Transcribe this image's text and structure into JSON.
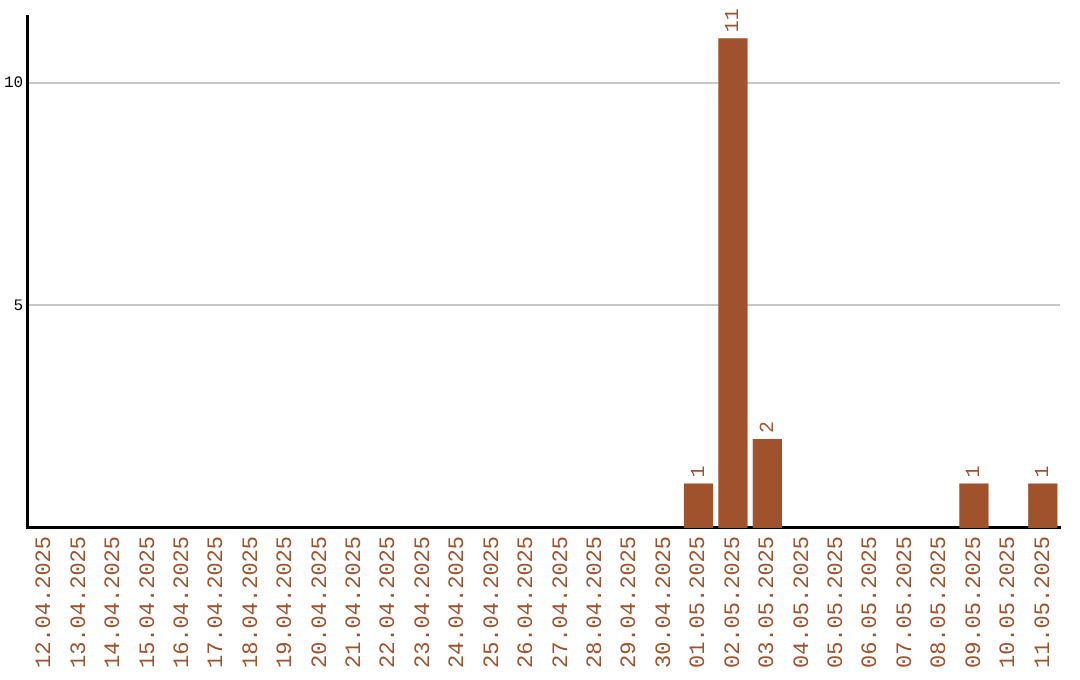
{
  "chart_data": {
    "type": "bar",
    "categories": [
      "12.04.2025",
      "13.04.2025",
      "14.04.2025",
      "15.04.2025",
      "16.04.2025",
      "17.04.2025",
      "18.04.2025",
      "19.04.2025",
      "20.04.2025",
      "21.04.2025",
      "22.04.2025",
      "23.04.2025",
      "24.04.2025",
      "25.04.2025",
      "26.04.2025",
      "27.04.2025",
      "28.04.2025",
      "29.04.2025",
      "30.04.2025",
      "01.05.2025",
      "02.05.2025",
      "03.05.2025",
      "04.05.2025",
      "05.05.2025",
      "06.05.2025",
      "07.05.2025",
      "08.05.2025",
      "09.05.2025",
      "10.05.2025",
      "11.05.2025"
    ],
    "values": [
      0,
      0,
      0,
      0,
      0,
      0,
      0,
      0,
      0,
      0,
      0,
      0,
      0,
      0,
      0,
      0,
      0,
      0,
      0,
      1,
      11,
      2,
      0,
      0,
      0,
      0,
      0,
      1,
      0,
      1
    ],
    "value_labels": [
      null,
      null,
      null,
      null,
      null,
      null,
      null,
      null,
      null,
      null,
      null,
      null,
      null,
      null,
      null,
      null,
      null,
      null,
      null,
      "1",
      "11",
      "2",
      null,
      null,
      null,
      null,
      null,
      "1",
      null,
      "1"
    ],
    "color": "#a0522d",
    "ylim": [
      0,
      11.5
    ],
    "yticks": [
      5,
      10
    ],
    "grid": "y",
    "legend": false
  }
}
